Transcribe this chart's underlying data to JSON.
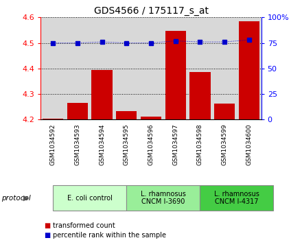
{
  "title": "GDS4566 / 175117_s_at",
  "samples": [
    "GSM1034592",
    "GSM1034593",
    "GSM1034594",
    "GSM1034595",
    "GSM1034596",
    "GSM1034597",
    "GSM1034598",
    "GSM1034599",
    "GSM1034600"
  ],
  "red_values": [
    4.202,
    4.265,
    4.395,
    4.232,
    4.212,
    4.548,
    4.385,
    4.263,
    4.585
  ],
  "blue_values": [
    75,
    75,
    76,
    75,
    75,
    77,
    76,
    76,
    78
  ],
  "ylim_left": [
    4.2,
    4.6
  ],
  "ylim_right": [
    0,
    100
  ],
  "yticks_left": [
    4.2,
    4.3,
    4.4,
    4.5,
    4.6
  ],
  "yticks_right": [
    0,
    25,
    50,
    75,
    100
  ],
  "bar_color": "#cc0000",
  "dot_color": "#0000cc",
  "groups": [
    {
      "label": "E. coli control",
      "start": 0,
      "end": 3,
      "color": "#ccffcc"
    },
    {
      "label": "L. rhamnosus\nCNCM I-3690",
      "start": 3,
      "end": 6,
      "color": "#99ee99"
    },
    {
      "label": "L. rhamnosus\nCNCM I-4317",
      "start": 6,
      "end": 9,
      "color": "#44cc44"
    }
  ],
  "legend_red": "transformed count",
  "legend_blue": "percentile rank within the sample",
  "protocol_label": "protocol"
}
